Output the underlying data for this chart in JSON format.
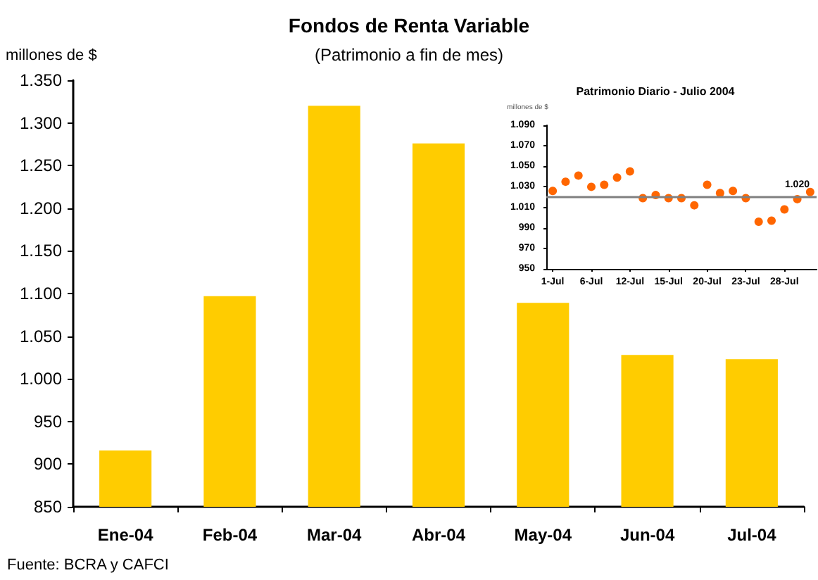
{
  "chart_data": [
    {
      "type": "bar",
      "title": "Fondos de Renta Variable",
      "subtitle": "(Patrimonio a fin de mes)",
      "ylabel": "millones de $",
      "categories": [
        "Ene-04",
        "Feb-04",
        "Mar-04",
        "Abr-04",
        "May-04",
        "Jun-04",
        "Jul-04"
      ],
      "values": [
        916,
        1097,
        1320,
        1276,
        1089,
        1028,
        1023
      ],
      "color": "#ffcc00",
      "ylim": [
        850,
        1350
      ],
      "yticks": [
        850,
        900,
        950,
        {
          "value": 1000,
          "label": "1.000"
        },
        {
          "value": 1050,
          "label": "1.050"
        },
        {
          "value": 1100,
          "label": "1.100"
        },
        {
          "value": 1150,
          "label": "1.150"
        },
        {
          "value": 1200,
          "label": "1.200"
        },
        {
          "value": 1250,
          "label": "1.250"
        },
        {
          "value": 1300,
          "label": "1.300"
        },
        {
          "value": 1350,
          "label": "1.350"
        }
      ],
      "grid": false,
      "annotations": [
        "Fuente: BCRA y CAFCI"
      ]
    },
    {
      "type": "scatter",
      "title": "Patrimonio Diario - Julio 2004",
      "ylabel": "millones de $",
      "categories": [
        "1-Jul",
        null,
        null,
        "6-Jul",
        null,
        null,
        "12-Jul",
        null,
        null,
        "15-Jul",
        null,
        null,
        "20-Jul",
        null,
        null,
        "23-Jul",
        null,
        null,
        "28-Jul",
        null,
        null
      ],
      "values": [
        1026,
        1035,
        1041,
        1030,
        1032,
        1039,
        1045,
        1019,
        1022,
        1019,
        1019,
        1012,
        1032,
        1024,
        1026,
        1019,
        996,
        997,
        1008,
        1018,
        1025
      ],
      "color": "#ff6600",
      "marker": "circle",
      "ylim": [
        950,
        1090
      ],
      "yticks": [
        950,
        970,
        990,
        {
          "value": 1010,
          "label": "1.010"
        },
        {
          "value": 1030,
          "label": "1.030"
        },
        {
          "value": 1050,
          "label": "1.050"
        },
        {
          "value": 1070,
          "label": "1.070"
        },
        {
          "value": 1090,
          "label": "1.090"
        }
      ],
      "ref_lines": [
        {
          "axis": "y",
          "value": 1020,
          "label": "1.020",
          "color": "#808080"
        }
      ],
      "grid": false
    }
  ]
}
